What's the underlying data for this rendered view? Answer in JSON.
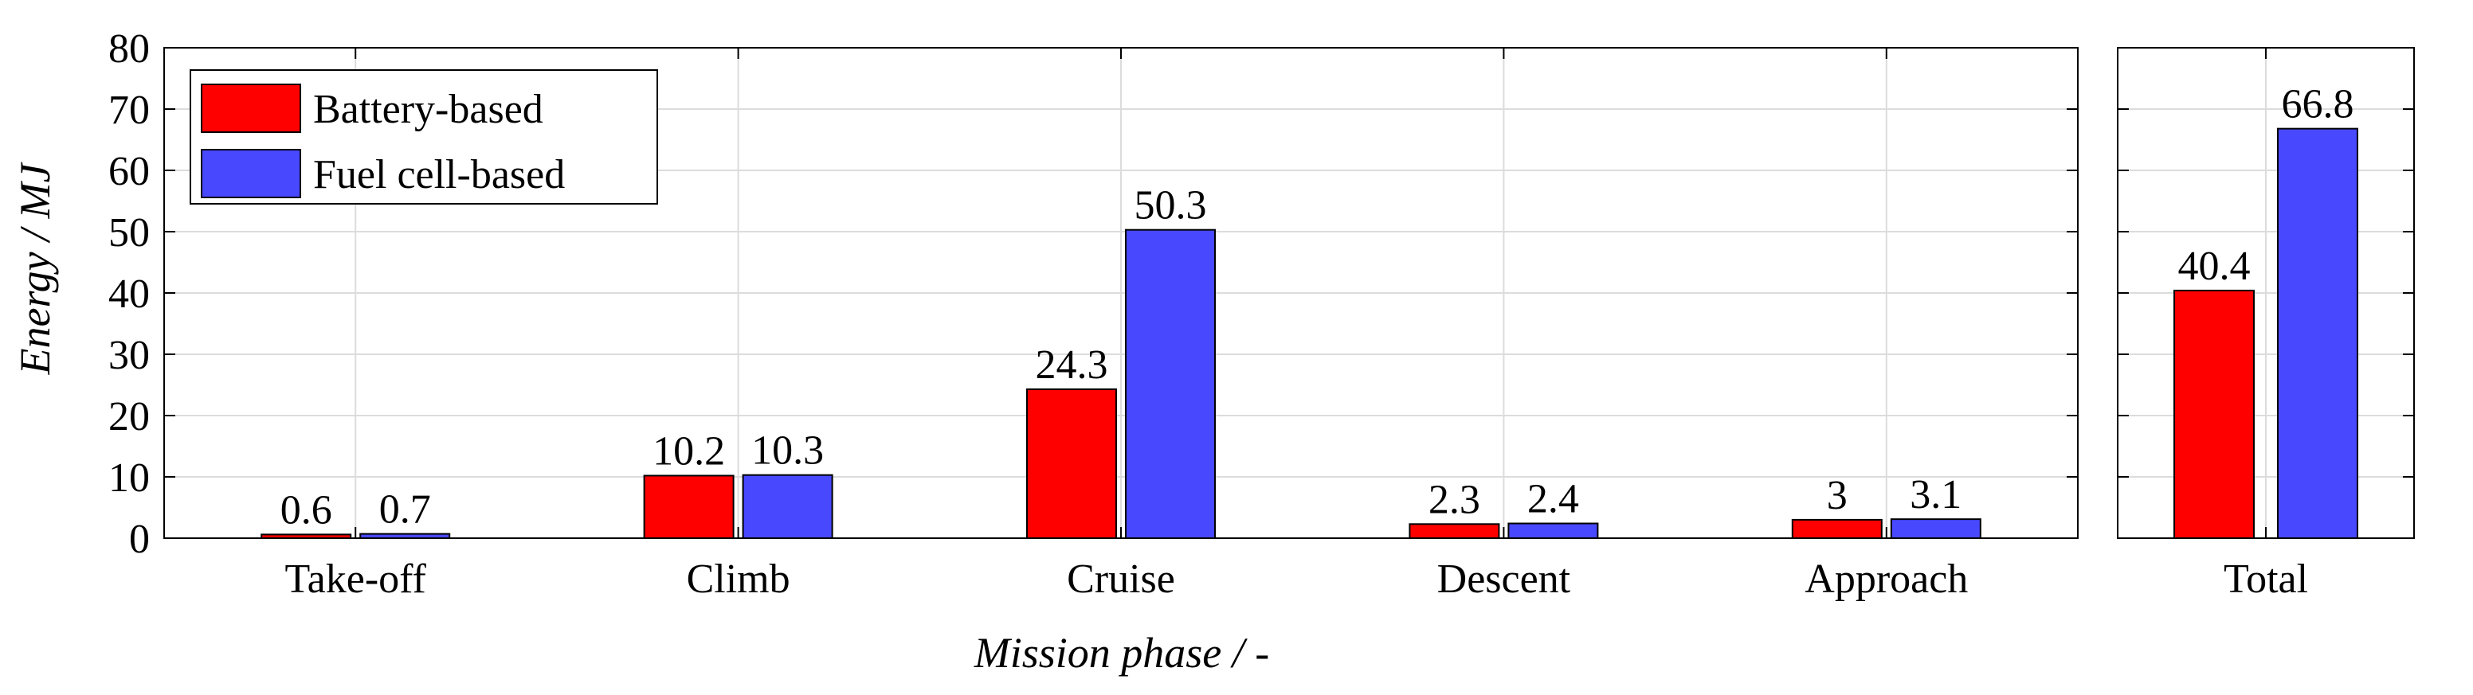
{
  "chart_data": [
    {
      "type": "bar",
      "categories": [
        "Take-off",
        "Climb",
        "Cruise",
        "Descent",
        "Approach"
      ],
      "series": [
        {
          "name": "Battery-based",
          "values": [
            0.6,
            10.2,
            24.3,
            2.3,
            3
          ],
          "labels": [
            "0.6",
            "10.2",
            "24.3",
            "2.3",
            "3"
          ],
          "color": "#ff0000"
        },
        {
          "name": "Fuel cell-based",
          "values": [
            0.7,
            10.3,
            50.3,
            2.4,
            3.1
          ],
          "labels": [
            "0.7",
            "10.3",
            "50.3",
            "2.4",
            "3.1"
          ],
          "color": "#4848ff"
        }
      ],
      "xlabel": "Mission phase / -",
      "ylabel": "Energy / MJ",
      "ylim": [
        0,
        80
      ],
      "yticks": [
        "0",
        "10",
        "20",
        "30",
        "40",
        "50",
        "60",
        "70",
        "80"
      ],
      "grid": true,
      "legend": "top-left"
    },
    {
      "type": "bar",
      "categories": [
        "Total"
      ],
      "series": [
        {
          "name": "Battery-based",
          "values": [
            40.4
          ],
          "labels": [
            "40.4"
          ],
          "color": "#ff0000"
        },
        {
          "name": "Fuel cell-based",
          "values": [
            66.8
          ],
          "labels": [
            "66.8"
          ],
          "color": "#4848ff"
        }
      ],
      "ylim": [
        0,
        80
      ],
      "grid": true
    }
  ]
}
